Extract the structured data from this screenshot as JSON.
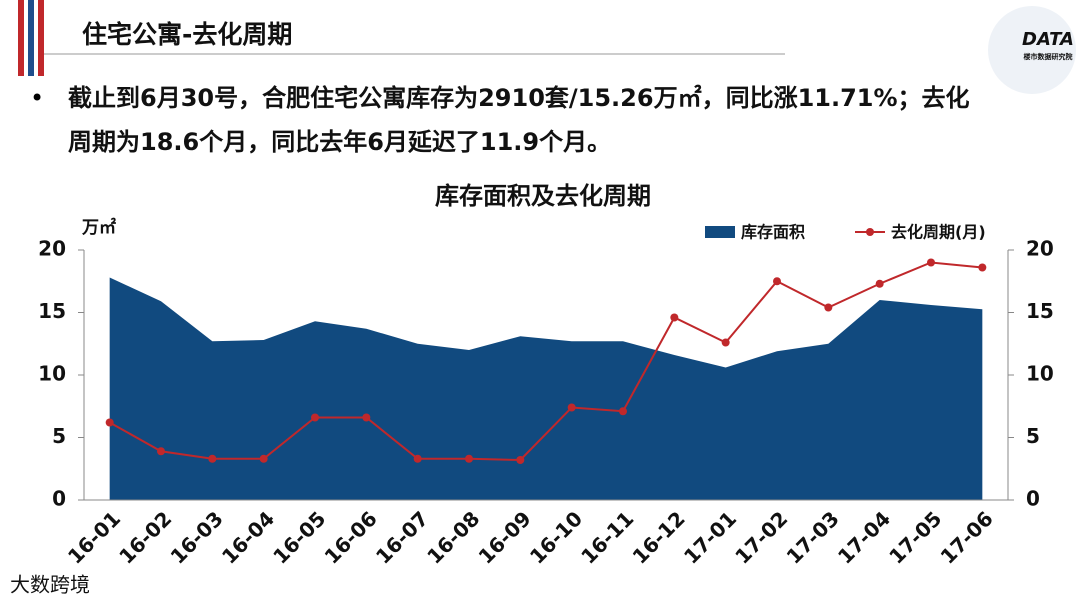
{
  "header": {
    "title": "住宅公寓-去化周期"
  },
  "logo": {
    "text": "DATA",
    "subtext": "楼市数据研究院"
  },
  "bullet": "截止到6月30号，合肥住宅公寓库存为2910套/15.26万㎡，同比涨11.71%；去化周期为18.6个月，同比去年6月延迟了11.9个月。",
  "watermark": "大数跨境",
  "chart_data": {
    "type": "area_line",
    "title": "库存面积及去化周期",
    "y_label": "万㎡",
    "categories": [
      "16-01",
      "16-02",
      "16-03",
      "16-04",
      "16-05",
      "16-06",
      "16-07",
      "16-08",
      "16-09",
      "16-10",
      "16-11",
      "16-12",
      "17-01",
      "17-02",
      "17-03",
      "17-04",
      "17-05",
      "17-06"
    ],
    "series": [
      {
        "name": "库存面积",
        "color": "#114a7f",
        "type": "area",
        "axis": "y",
        "values": [
          17.8,
          15.9,
          12.7,
          12.8,
          14.3,
          13.7,
          12.5,
          12.0,
          13.1,
          12.7,
          12.7,
          11.6,
          10.6,
          11.9,
          12.5,
          16.0,
          15.6,
          15.26
        ]
      },
      {
        "name": "去化周期(月)",
        "color": "#c0282b",
        "type": "line",
        "axis": "y2",
        "values": [
          6.2,
          3.9,
          3.3,
          3.3,
          6.6,
          6.6,
          3.3,
          3.3,
          3.2,
          7.4,
          7.1,
          14.6,
          12.6,
          17.5,
          15.4,
          17.3,
          19.0,
          18.6
        ]
      }
    ],
    "ylim": [
      0,
      20
    ],
    "yticks": [
      0,
      5,
      10,
      15,
      20
    ],
    "y2lim": [
      0,
      20
    ],
    "y2ticks": [
      0,
      5,
      10,
      15,
      20
    ],
    "legend": "top-right"
  }
}
